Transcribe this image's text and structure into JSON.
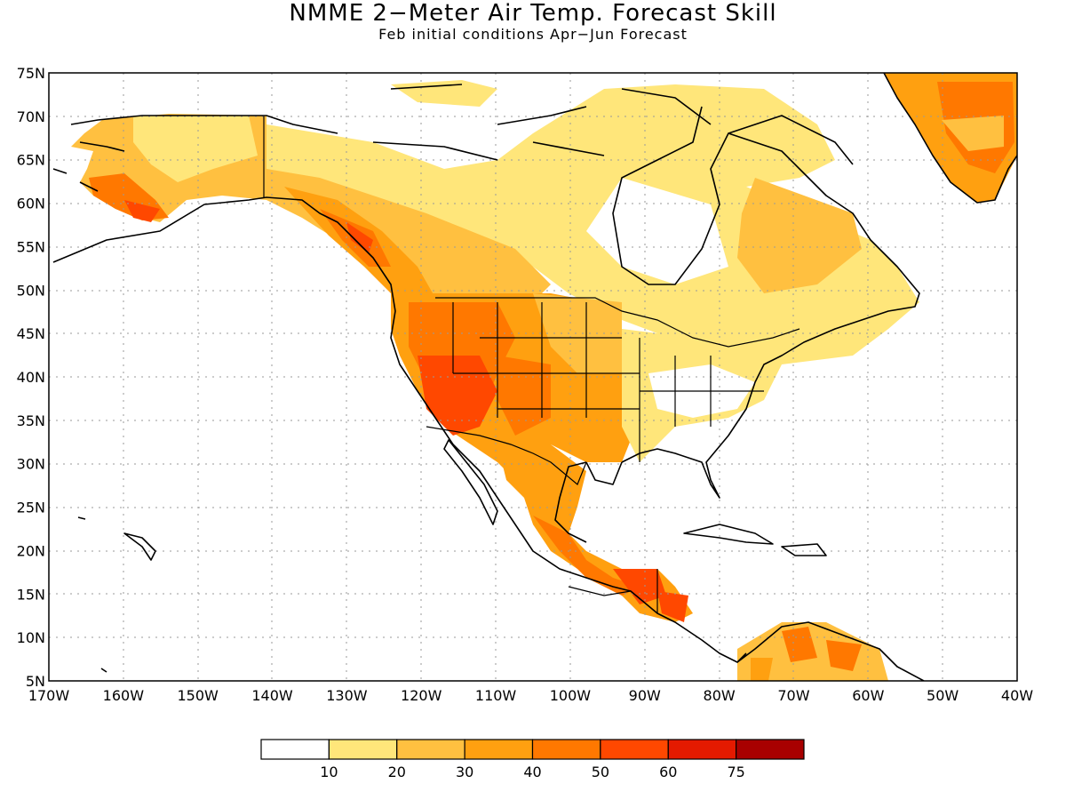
{
  "title": "NMME 2−Meter Air Temp. Forecast Skill",
  "subtitle": "Feb initial conditions  Apr−Jun Forecast",
  "map": {
    "lon_range": [
      -170,
      -40
    ],
    "lat_range": [
      5,
      75
    ],
    "grid": "dotted",
    "lon_ticks": [
      "170W",
      "160W",
      "150W",
      "140W",
      "130W",
      "120W",
      "110W",
      "100W",
      "90W",
      "80W",
      "70W",
      "60W",
      "50W",
      "40W"
    ],
    "lat_ticks": [
      "75N",
      "70N",
      "65N",
      "60N",
      "55N",
      "50N",
      "45N",
      "40N",
      "35N",
      "30N",
      "25N",
      "20N",
      "15N",
      "10N",
      "5N"
    ]
  },
  "legend": {
    "colors": [
      "#ffffff",
      "#ffe67a",
      "#ffc040",
      "#ffa010",
      "#ff7800",
      "#ff4800",
      "#e41a00",
      "#a80000"
    ],
    "labels": [
      "10",
      "20",
      "30",
      "40",
      "50",
      "60",
      "75"
    ]
  }
}
